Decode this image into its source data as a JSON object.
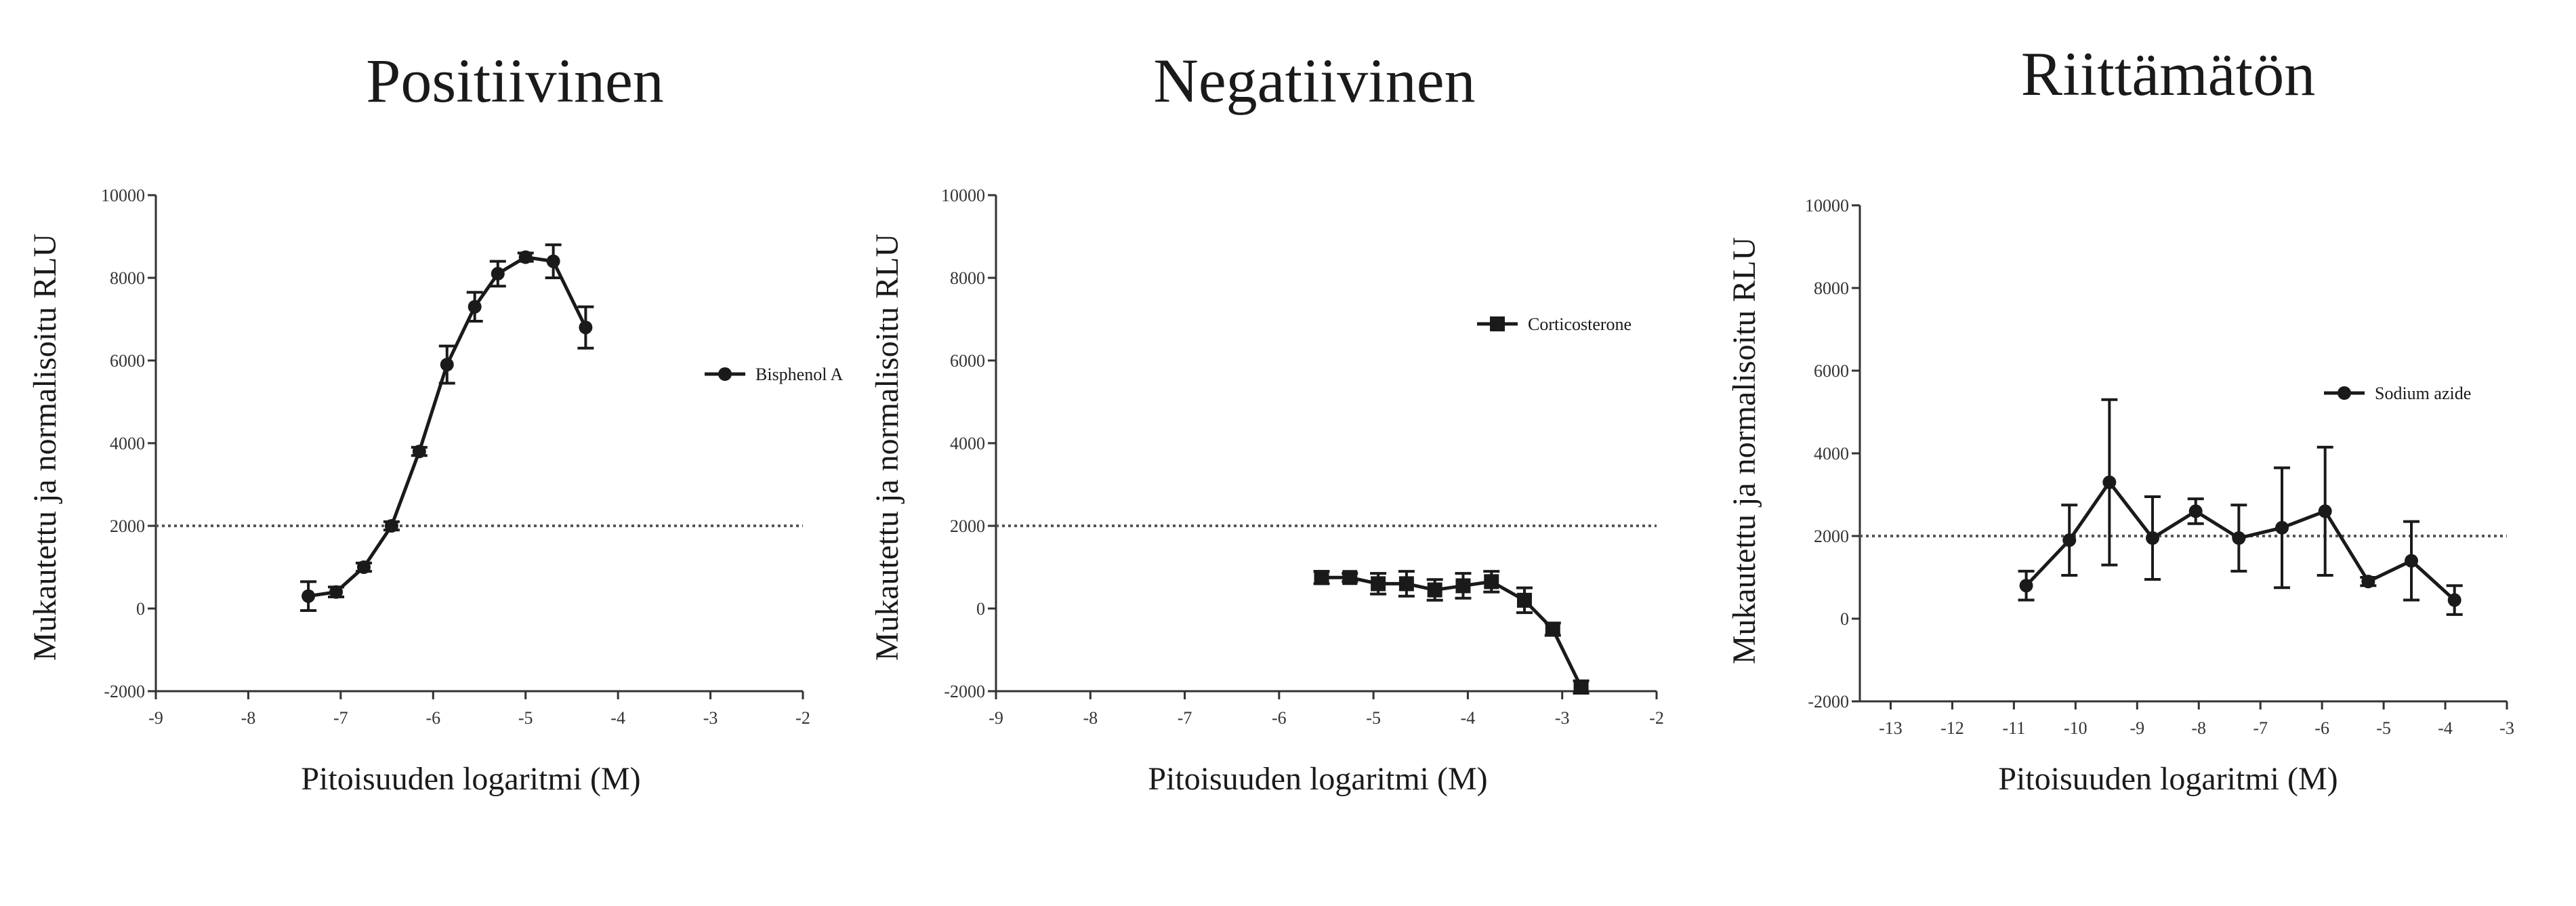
{
  "figure": {
    "colors": {
      "line": "#1a1a1a",
      "axis": "#333333",
      "threshold": "#555555"
    }
  },
  "chart_data": [
    {
      "type": "line",
      "title": "Positiivinen",
      "xlabel": "Pitoisuuden logaritmi (M)",
      "ylabel": "Mukautettu ja normalisoitu RLU",
      "xlim": [
        -9,
        -2
      ],
      "ylim": [
        -2000,
        10000
      ],
      "xticks": [
        -9,
        -8,
        -7,
        -6,
        -5,
        -4,
        -3,
        -2
      ],
      "yticks": [
        -2000,
        0,
        2000,
        4000,
        6000,
        8000,
        10000
      ],
      "xtick_labels": [
        "-9",
        "-8",
        "-7",
        "-6",
        "-5",
        "-4",
        "-3",
        "-2"
      ],
      "ytick_labels": [
        "-2000",
        "0",
        "2000",
        "4000",
        "6000",
        "8000",
        "10000"
      ],
      "threshold": 2000,
      "legend_position": "right",
      "marker": "circle",
      "series": [
        {
          "name": "Bisphenol A",
          "x": [
            -7.35,
            -7.05,
            -6.75,
            -6.45,
            -6.15,
            -5.85,
            -5.55,
            -5.3,
            -5.0,
            -4.7,
            -4.35
          ],
          "y": [
            300,
            400,
            1000,
            2000,
            3800,
            5900,
            7300,
            8100,
            8500,
            8400,
            6800
          ],
          "err": [
            350,
            120,
            100,
            100,
            100,
            450,
            350,
            300,
            100,
            400,
            500
          ]
        }
      ]
    },
    {
      "type": "line",
      "title": "Negatiivinen",
      "xlabel": "Pitoisuuden logaritmi (M)",
      "ylabel": "Mukautettu ja normalisoitu RLU",
      "xlim": [
        -9,
        -2
      ],
      "ylim": [
        -2000,
        10000
      ],
      "xticks": [
        -9,
        -8,
        -7,
        -6,
        -5,
        -4,
        -3,
        -2
      ],
      "yticks": [
        -2000,
        0,
        2000,
        4000,
        6000,
        8000,
        10000
      ],
      "xtick_labels": [
        "-9",
        "-8",
        "-7",
        "-6",
        "-5",
        "-4",
        "-3",
        "-2"
      ],
      "ytick_labels": [
        "-2000",
        "0",
        "2000",
        "4000",
        "6000",
        "8000",
        "10000"
      ],
      "threshold": 2000,
      "legend_position": "top-right",
      "marker": "square",
      "series": [
        {
          "name": "Corticosterone",
          "x": [
            -5.55,
            -5.25,
            -4.95,
            -4.65,
            -4.35,
            -4.05,
            -3.75,
            -3.4,
            -3.1,
            -2.8
          ],
          "y": [
            750,
            750,
            600,
            600,
            450,
            550,
            650,
            200,
            -500,
            -1900
          ],
          "err": [
            150,
            100,
            250,
            300,
            250,
            300,
            250,
            300,
            150,
            150
          ]
        }
      ]
    },
    {
      "type": "line",
      "title": "Riittämätön",
      "xlabel": "Pitoisuuden logaritmi (M)",
      "ylabel": "Mukautettu ja normalisoitu RLU",
      "xlim": [
        -13.5,
        -3
      ],
      "ylim": [
        -2000,
        10000
      ],
      "xticks": [
        -13,
        -12,
        -11,
        -10,
        -9,
        -8,
        -7,
        -6,
        -5,
        -4,
        -3
      ],
      "yticks": [
        -2000,
        0,
        2000,
        4000,
        6000,
        8000,
        10000
      ],
      "xtick_labels": [
        "-13",
        "-12",
        "-11",
        "-10",
        "-9",
        "-8",
        "-7",
        "-6",
        "-5",
        "-4",
        "-3"
      ],
      "ytick_labels": [
        "-2000",
        "0",
        "2000",
        "4000",
        "6000",
        "8000",
        "10000"
      ],
      "threshold": 2000,
      "legend_position": "top-right",
      "marker": "circle",
      "series": [
        {
          "name": "Sodium azide",
          "x": [
            -10.8,
            -10.1,
            -9.45,
            -8.75,
            -8.05,
            -7.35,
            -6.65,
            -5.95,
            -5.25,
            -4.55,
            -3.85
          ],
          "y": [
            800,
            1900,
            3300,
            1950,
            2600,
            1950,
            2200,
            2600,
            900,
            1400,
            450
          ],
          "err": [
            350,
            850,
            2000,
            1000,
            300,
            800,
            1450,
            1550,
            100,
            950,
            350
          ]
        }
      ]
    }
  ]
}
